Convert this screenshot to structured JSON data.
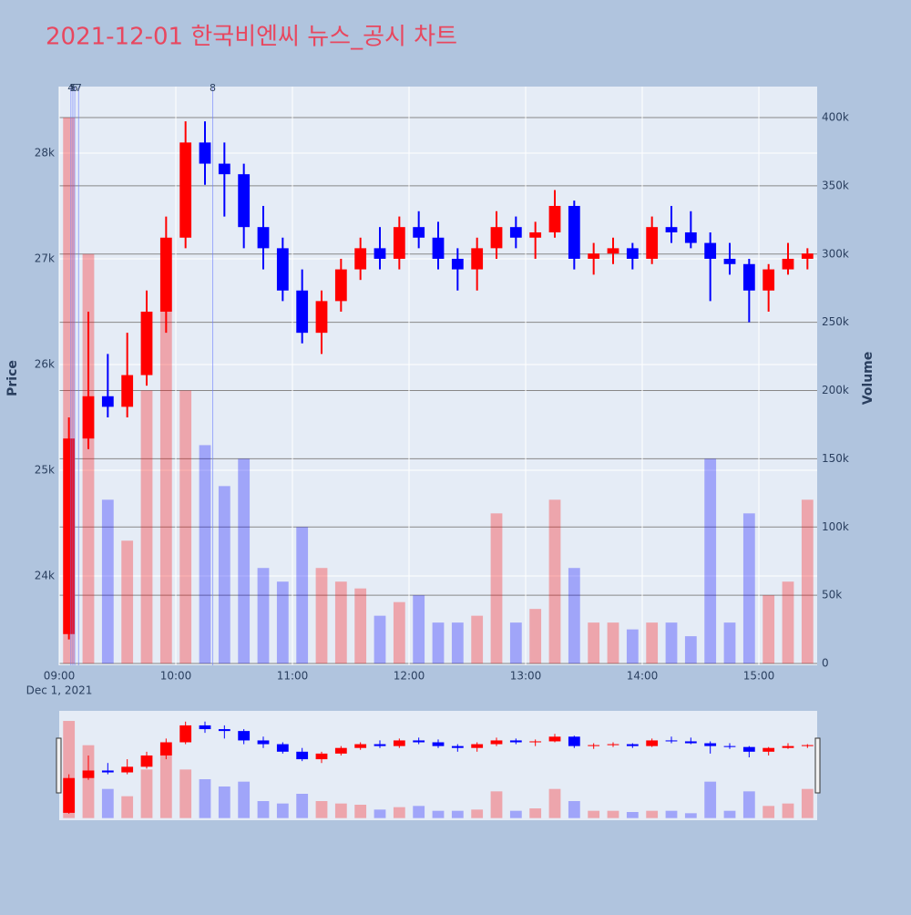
{
  "chart_data": {
    "type": "candlestick",
    "title": "2021-12-01 한국비엔씨 뉴스_공시 차트",
    "y_label": "Price",
    "y2_label": "Volume",
    "x_date_label": "Dec 1, 2021",
    "increasing_color": "#ff0000",
    "decreasing_color": "#0000ff",
    "x": [
      "2021-12-01 09:00",
      "2021-12-01 09:10",
      "2021-12-01 09:20",
      "2021-12-01 09:30",
      "2021-12-01 09:40",
      "2021-12-01 09:50",
      "2021-12-01 10:00",
      "2021-12-01 10:10",
      "2021-12-01 10:20",
      "2021-12-01 10:30",
      "2021-12-01 10:40",
      "2021-12-01 10:50",
      "2021-12-01 11:00",
      "2021-12-01 11:10",
      "2021-12-01 11:20",
      "2021-12-01 11:30",
      "2021-12-01 11:40",
      "2021-12-01 11:50",
      "2021-12-01 12:00",
      "2021-12-01 12:10",
      "2021-12-01 12:20",
      "2021-12-01 12:30",
      "2021-12-01 12:40",
      "2021-12-01 12:50",
      "2021-12-01 13:00",
      "2021-12-01 13:10",
      "2021-12-01 13:20",
      "2021-12-01 13:30",
      "2021-12-01 13:40",
      "2021-12-01 13:50",
      "2021-12-01 14:00",
      "2021-12-01 14:10",
      "2021-12-01 14:20",
      "2021-12-01 14:30",
      "2021-12-01 14:40",
      "2021-12-01 14:50",
      "2021-12-01 15:00",
      "2021-12-01 15:10",
      "2021-12-01 15:20"
    ],
    "open": [
      23450,
      25300,
      25700,
      25600,
      25900,
      26500,
      27200,
      28100,
      27900,
      27800,
      27300,
      27100,
      26700,
      26300,
      26600,
      26900,
      27100,
      27000,
      27300,
      27200,
      27000,
      26900,
      27100,
      27300,
      27200,
      27250,
      27500,
      27000,
      27050,
      27100,
      27000,
      27300,
      27250,
      27150,
      27000,
      26950,
      26700,
      26900,
      27000
    ],
    "high": [
      25500,
      26500,
      26100,
      26300,
      26700,
      27400,
      28300,
      28300,
      28100,
      27900,
      27500,
      27200,
      26900,
      26700,
      27000,
      27200,
      27300,
      27400,
      27450,
      27350,
      27100,
      27200,
      27450,
      27400,
      27350,
      27650,
      27550,
      27150,
      27200,
      27150,
      27400,
      27500,
      27450,
      27250,
      27150,
      27000,
      26950,
      27150,
      27100
    ],
    "low": [
      23400,
      25200,
      25500,
      25500,
      25800,
      26300,
      27100,
      27700,
      27400,
      27100,
      26900,
      26600,
      26200,
      26100,
      26500,
      26800,
      26900,
      26900,
      27100,
      26900,
      26700,
      26700,
      27000,
      27100,
      27000,
      27200,
      26900,
      26850,
      26950,
      26900,
      26950,
      27150,
      27100,
      26600,
      26850,
      26400,
      26500,
      26850,
      26900
    ],
    "close": [
      25300,
      25700,
      25600,
      25900,
      26500,
      27200,
      28100,
      27900,
      27800,
      27300,
      27100,
      26700,
      26300,
      26600,
      26900,
      27100,
      27000,
      27300,
      27200,
      27000,
      26900,
      27100,
      27300,
      27200,
      27250,
      27500,
      27000,
      27050,
      27100,
      27000,
      27300,
      27250,
      27150,
      27000,
      26950,
      26700,
      26900,
      27000,
      27050
    ],
    "volume": [
      400000,
      300000,
      120000,
      90000,
      200000,
      300000,
      200000,
      160000,
      130000,
      150000,
      70000,
      60000,
      100000,
      70000,
      60000,
      55000,
      35000,
      45000,
      50000,
      30000,
      30000,
      35000,
      110000,
      30000,
      40000,
      120000,
      70000,
      30000,
      30000,
      25000,
      30000,
      30000,
      20000,
      150000,
      30000,
      110000,
      50000,
      60000,
      120000
    ],
    "xlim": [
      "2021-12-01 09:00",
      "2021-12-01 15:30"
    ],
    "xticks": [
      {
        "value": "2021-12-01 09:00",
        "label": "09:00"
      },
      {
        "value": "2021-12-01 10:00",
        "label": "10:00"
      },
      {
        "value": "2021-12-01 11:00",
        "label": "11:00"
      },
      {
        "value": "2021-12-01 12:00",
        "label": "12:00"
      },
      {
        "value": "2021-12-01 13:00",
        "label": "13:00"
      },
      {
        "value": "2021-12-01 14:00",
        "label": "14:00"
      },
      {
        "value": "2021-12-01 15:00",
        "label": "15:00"
      }
    ],
    "ylim": [
      23155,
      28629
    ],
    "yticks": [
      {
        "value": 24000,
        "label": "24k"
      },
      {
        "value": 25000,
        "label": "25k"
      },
      {
        "value": 26000,
        "label": "26k"
      },
      {
        "value": 27000,
        "label": "27k"
      },
      {
        "value": 28000,
        "label": "28k"
      }
    ],
    "y2lim": [
      -1300,
      422700
    ],
    "y2ticks": [
      0,
      {
        "value": 50000,
        "label": "50k"
      },
      {
        "value": 100000,
        "label": "100k"
      },
      {
        "value": 150000,
        "label": "150k"
      },
      {
        "value": 200000,
        "label": "200k"
      },
      {
        "value": 250000,
        "label": "250k"
      },
      {
        "value": 300000,
        "label": "300k"
      },
      {
        "value": 350000,
        "label": "350k"
      },
      {
        "value": 400000,
        "label": "400k"
      }
    ],
    "annotations": [
      {
        "x": "2021-12-01 09:06",
        "text": "4"
      },
      {
        "x": "2021-12-01 09:07",
        "text": "5"
      },
      {
        "x": "2021-12-01 09:08",
        "text": "6"
      },
      {
        "x": "2021-12-01 09:10",
        "text": "7"
      },
      {
        "x": "2021-12-01 10:19",
        "text": "8"
      }
    ],
    "grid": true,
    "range_slider": true
  }
}
